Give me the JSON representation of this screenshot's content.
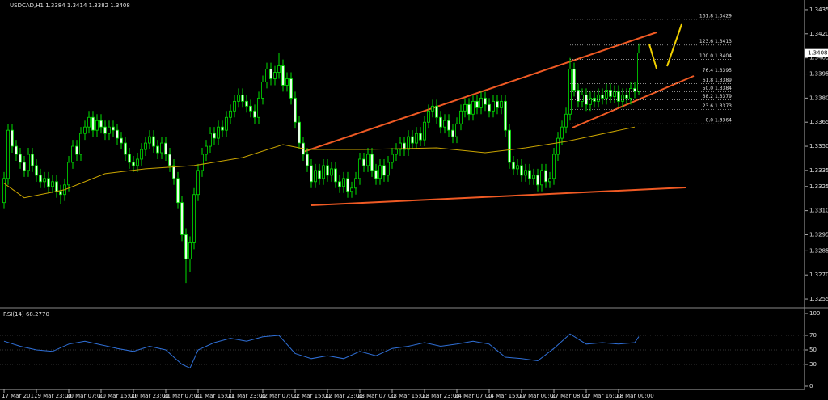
{
  "chart_data": {
    "type": "candlestick",
    "title": "USDCAD,H1  1.3384 1.3414 1.3382 1.3408",
    "up_color": "#000000",
    "down_color": "#e6ffe6",
    "wick_color": "#00e000",
    "grid": false,
    "xlim": [
      -1,
      198
    ],
    "ylim": [
      1.325,
      1.344
    ],
    "yticks": [
      1.3435,
      {
        "value": 1.342,
        "label": "1.3420"
      },
      1.3405,
      1.3395,
      {
        "value": 1.338,
        "label": "1.3380"
      },
      1.3365,
      {
        "value": 1.335,
        "label": "1.3350"
      },
      1.3335,
      1.3325,
      {
        "value": 1.331,
        "label": "1.3310"
      },
      1.3295,
      1.3285,
      {
        "value": 1.327,
        "label": "1.3270"
      },
      1.3255
    ],
    "xticks": [
      {
        "value": 0,
        "label": "17 Mar 2017"
      },
      {
        "value": 8,
        "label": "19 Mar 23:00"
      },
      {
        "value": 16,
        "label": "20 Mar 07:00"
      },
      {
        "value": 24,
        "label": "20 Mar 15:00"
      },
      {
        "value": 32,
        "label": "20 Mar 23:00"
      },
      {
        "value": 40,
        "label": "21 Mar 07:00"
      },
      {
        "value": 48,
        "label": "21 Mar 15:00"
      },
      {
        "value": 56,
        "label": "21 Mar 23:00"
      },
      {
        "value": 64,
        "label": "22 Mar 07:00"
      },
      {
        "value": 72,
        "label": "22 Mar 15:00"
      },
      {
        "value": 80,
        "label": "22 Mar 23:00"
      },
      {
        "value": 88,
        "label": "23 Mar 07:00"
      },
      {
        "value": 96,
        "label": "23 Mar 15:00"
      },
      {
        "value": 104,
        "label": "23 Mar 23:00"
      },
      {
        "value": 112,
        "label": "24 Mar 07:00"
      },
      {
        "value": 120,
        "label": "24 Mar 15:00"
      },
      {
        "value": 128,
        "label": "27 Mar 00:00"
      },
      {
        "value": 136,
        "label": "27 Mar 08:00"
      },
      {
        "value": 144,
        "label": "27 Mar 16:00"
      },
      {
        "value": 152,
        "label": "28 Mar 00:00"
      }
    ],
    "last_price": 1.3408,
    "candles": [
      [
        1.3315,
        1.3334,
        1.3311,
        1.333
      ],
      [
        1.333,
        1.3364,
        1.3326,
        1.336
      ],
      [
        1.336,
        1.3364,
        1.3346,
        1.335
      ],
      [
        1.335,
        1.3354,
        1.3341,
        1.3345
      ],
      [
        1.3345,
        1.3349,
        1.3336,
        1.334
      ],
      [
        1.334,
        1.3344,
        1.3331,
        1.3335
      ],
      [
        1.3335,
        1.3349,
        1.3331,
        1.3345
      ],
      [
        1.3345,
        1.3349,
        1.3334,
        1.3338
      ],
      [
        1.3338,
        1.3342,
        1.3328,
        1.3332
      ],
      [
        1.3332,
        1.3336,
        1.3324,
        1.3328
      ],
      [
        1.3328,
        1.3334,
        1.3324,
        1.333
      ],
      [
        1.333,
        1.3334,
        1.3321,
        1.3325
      ],
      [
        1.3325,
        1.3332,
        1.3321,
        1.3328
      ],
      [
        1.3328,
        1.3332,
        1.3318,
        1.3322
      ],
      [
        1.3322,
        1.3326,
        1.3314,
        1.332
      ],
      [
        1.332,
        1.333,
        1.3316,
        1.3326
      ],
      [
        1.3326,
        1.3344,
        1.3322,
        1.334
      ],
      [
        1.334,
        1.3354,
        1.3336,
        1.335
      ],
      [
        1.335,
        1.3354,
        1.3341,
        1.3345
      ],
      [
        1.3345,
        1.3362,
        1.3341,
        1.3358
      ],
      [
        1.3358,
        1.3366,
        1.3354,
        1.3362
      ],
      [
        1.3362,
        1.3372,
        1.3358,
        1.3368
      ],
      [
        1.3368,
        1.3372,
        1.3356,
        1.336
      ],
      [
        1.336,
        1.337,
        1.3356,
        1.3366
      ],
      [
        1.3366,
        1.337,
        1.3358,
        1.3362
      ],
      [
        1.3362,
        1.3366,
        1.3354,
        1.3358
      ],
      [
        1.3358,
        1.3366,
        1.3354,
        1.3362
      ],
      [
        1.3362,
        1.3366,
        1.3356,
        1.336
      ],
      [
        1.336,
        1.3364,
        1.3351,
        1.3355
      ],
      [
        1.3355,
        1.3359,
        1.3348,
        1.3352
      ],
      [
        1.3352,
        1.3356,
        1.3341,
        1.3345
      ],
      [
        1.3345,
        1.3349,
        1.3336,
        1.334
      ],
      [
        1.334,
        1.3344,
        1.3334,
        1.3338
      ],
      [
        1.3338,
        1.3346,
        1.3334,
        1.3342
      ],
      [
        1.3342,
        1.3352,
        1.3338,
        1.3348
      ],
      [
        1.3348,
        1.3356,
        1.3344,
        1.3352
      ],
      [
        1.3352,
        1.336,
        1.3348,
        1.3356
      ],
      [
        1.3356,
        1.336,
        1.3346,
        1.335
      ],
      [
        1.335,
        1.3354,
        1.3342,
        1.3346
      ],
      [
        1.3346,
        1.3356,
        1.3342,
        1.3352
      ],
      [
        1.3352,
        1.3356,
        1.3341,
        1.3345
      ],
      [
        1.3345,
        1.3349,
        1.3334,
        1.3338
      ],
      [
        1.3338,
        1.3342,
        1.3326,
        1.333
      ],
      [
        1.333,
        1.3334,
        1.3311,
        1.3315
      ],
      [
        1.3315,
        1.3319,
        1.3291,
        1.3295
      ],
      [
        1.3295,
        1.3299,
        1.3265,
        1.328
      ],
      [
        1.328,
        1.3294,
        1.3272,
        1.329
      ],
      [
        1.329,
        1.3324,
        1.3286,
        1.332
      ],
      [
        1.332,
        1.3339,
        1.3316,
        1.3335
      ],
      [
        1.3335,
        1.3349,
        1.3331,
        1.3345
      ],
      [
        1.3345,
        1.3354,
        1.3341,
        1.335
      ],
      [
        1.335,
        1.3362,
        1.3346,
        1.3358
      ],
      [
        1.3358,
        1.3362,
        1.3351,
        1.3355
      ],
      [
        1.3355,
        1.3366,
        1.3351,
        1.3362
      ],
      [
        1.3362,
        1.3366,
        1.3356,
        1.336
      ],
      [
        1.336,
        1.3372,
        1.3356,
        1.3368
      ],
      [
        1.3368,
        1.3376,
        1.3364,
        1.3372
      ],
      [
        1.3372,
        1.3382,
        1.3368,
        1.3378
      ],
      [
        1.3378,
        1.3386,
        1.3374,
        1.3382
      ],
      [
        1.3382,
        1.3386,
        1.3374,
        1.3378
      ],
      [
        1.3378,
        1.3382,
        1.3371,
        1.3375
      ],
      [
        1.3375,
        1.3379,
        1.3368,
        1.3372
      ],
      [
        1.3372,
        1.3376,
        1.3364,
        1.3368
      ],
      [
        1.3368,
        1.3384,
        1.3364,
        1.338
      ],
      [
        1.338,
        1.3394,
        1.3376,
        1.339
      ],
      [
        1.339,
        1.3402,
        1.3386,
        1.3398
      ],
      [
        1.3398,
        1.3402,
        1.3388,
        1.3392
      ],
      [
        1.3392,
        1.34,
        1.3388,
        1.3396
      ],
      [
        1.3396,
        1.3408,
        1.3392,
        1.34
      ],
      [
        1.34,
        1.3404,
        1.3384,
        1.3388
      ],
      [
        1.3388,
        1.3396,
        1.3384,
        1.3392
      ],
      [
        1.3392,
        1.3396,
        1.3376,
        1.338
      ],
      [
        1.338,
        1.3384,
        1.3361,
        1.3365
      ],
      [
        1.3365,
        1.3369,
        1.3348,
        1.3352
      ],
      [
        1.3352,
        1.3356,
        1.3341,
        1.3345
      ],
      [
        1.3345,
        1.3349,
        1.3334,
        1.3338
      ],
      [
        1.3338,
        1.3342,
        1.3324,
        1.3328
      ],
      [
        1.3328,
        1.3339,
        1.3324,
        1.3335
      ],
      [
        1.3335,
        1.3339,
        1.3326,
        1.333
      ],
      [
        1.333,
        1.3342,
        1.3326,
        1.3338
      ],
      [
        1.3338,
        1.3342,
        1.3328,
        1.3332
      ],
      [
        1.3332,
        1.334,
        1.3328,
        1.3336
      ],
      [
        1.3336,
        1.334,
        1.3324,
        1.3328
      ],
      [
        1.3328,
        1.3332,
        1.3321,
        1.3325
      ],
      [
        1.3325,
        1.3334,
        1.3321,
        1.333
      ],
      [
        1.333,
        1.3334,
        1.3318,
        1.3322
      ],
      [
        1.3322,
        1.3328,
        1.3318,
        1.3324
      ],
      [
        1.3324,
        1.3334,
        1.332,
        1.333
      ],
      [
        1.333,
        1.3346,
        1.3326,
        1.3342
      ],
      [
        1.3342,
        1.3346,
        1.3334,
        1.3338
      ],
      [
        1.3338,
        1.3349,
        1.3334,
        1.3345
      ],
      [
        1.3345,
        1.3349,
        1.3331,
        1.3335
      ],
      [
        1.3335,
        1.3339,
        1.3326,
        1.333
      ],
      [
        1.333,
        1.3342,
        1.3326,
        1.3338
      ],
      [
        1.3338,
        1.3342,
        1.3328,
        1.3332
      ],
      [
        1.3332,
        1.3344,
        1.3328,
        1.334
      ],
      [
        1.334,
        1.3349,
        1.3336,
        1.3345
      ],
      [
        1.3345,
        1.3352,
        1.3341,
        1.3348
      ],
      [
        1.3348,
        1.3356,
        1.3344,
        1.3352
      ],
      [
        1.3352,
        1.3356,
        1.3344,
        1.3348
      ],
      [
        1.3348,
        1.336,
        1.3344,
        1.3356
      ],
      [
        1.3356,
        1.336,
        1.3348,
        1.3352
      ],
      [
        1.3352,
        1.3362,
        1.3348,
        1.3358
      ],
      [
        1.3358,
        1.3362,
        1.335,
        1.3354
      ],
      [
        1.3354,
        1.3369,
        1.335,
        1.3365
      ],
      [
        1.3365,
        1.3376,
        1.3361,
        1.3372
      ],
      [
        1.3372,
        1.3379,
        1.3368,
        1.3375
      ],
      [
        1.3375,
        1.3379,
        1.3364,
        1.3368
      ],
      [
        1.3368,
        1.3372,
        1.3358,
        1.3362
      ],
      [
        1.3362,
        1.337,
        1.3358,
        1.3366
      ],
      [
        1.3366,
        1.337,
        1.3356,
        1.336
      ],
      [
        1.336,
        1.3364,
        1.3352,
        1.3356
      ],
      [
        1.3356,
        1.3368,
        1.3352,
        1.3364
      ],
      [
        1.3364,
        1.3376,
        1.336,
        1.3372
      ],
      [
        1.3372,
        1.338,
        1.3368,
        1.3376
      ],
      [
        1.3376,
        1.338,
        1.3366,
        1.337
      ],
      [
        1.337,
        1.3382,
        1.3366,
        1.3378
      ],
      [
        1.3378,
        1.3382,
        1.337,
        1.3374
      ],
      [
        1.3374,
        1.3384,
        1.337,
        1.338
      ],
      [
        1.338,
        1.3384,
        1.3372,
        1.3376
      ],
      [
        1.3376,
        1.338,
        1.3368,
        1.3372
      ],
      [
        1.3372,
        1.3382,
        1.3368,
        1.3378
      ],
      [
        1.3378,
        1.3382,
        1.337,
        1.3374
      ],
      [
        1.3374,
        1.3382,
        1.337,
        1.3378
      ],
      [
        1.3378,
        1.3382,
        1.3356,
        1.336
      ],
      [
        1.336,
        1.3364,
        1.3336,
        1.334
      ],
      [
        1.334,
        1.3344,
        1.3332,
        1.3336
      ],
      [
        1.3336,
        1.3342,
        1.3332,
        1.3338
      ],
      [
        1.3338,
        1.3342,
        1.3328,
        1.3332
      ],
      [
        1.3332,
        1.3339,
        1.3328,
        1.3335
      ],
      [
        1.3335,
        1.3339,
        1.3326,
        1.333
      ],
      [
        1.333,
        1.3336,
        1.3326,
        1.3332
      ],
      [
        1.3332,
        1.3336,
        1.3322,
        1.3326
      ],
      [
        1.3326,
        1.3339,
        1.3322,
        1.3335
      ],
      [
        1.3335,
        1.3339,
        1.3324,
        1.3328
      ],
      [
        1.3328,
        1.3334,
        1.3324,
        1.333
      ],
      [
        1.333,
        1.3349,
        1.3326,
        1.3345
      ],
      [
        1.3345,
        1.3359,
        1.3341,
        1.3355
      ],
      [
        1.3355,
        1.3366,
        1.3351,
        1.3362
      ],
      [
        1.3362,
        1.3374,
        1.3358,
        1.337
      ],
      [
        1.337,
        1.3405,
        1.3366,
        1.3398
      ],
      [
        1.3398,
        1.3402,
        1.3381,
        1.3385
      ],
      [
        1.3385,
        1.3389,
        1.3374,
        1.3378
      ],
      [
        1.3378,
        1.3386,
        1.3374,
        1.3382
      ],
      [
        1.3382,
        1.3386,
        1.3372,
        1.3376
      ],
      [
        1.3376,
        1.3384,
        1.3372,
        1.338
      ],
      [
        1.338,
        1.3384,
        1.3374,
        1.3378
      ],
      [
        1.3378,
        1.3386,
        1.3374,
        1.3382
      ],
      [
        1.3382,
        1.3386,
        1.3376,
        1.338
      ],
      [
        1.338,
        1.3389,
        1.3376,
        1.3385
      ],
      [
        1.3385,
        1.3389,
        1.3377,
        1.3381
      ],
      [
        1.3381,
        1.3388,
        1.3377,
        1.3384
      ],
      [
        1.3384,
        1.3388,
        1.3374,
        1.3378
      ],
      [
        1.3378,
        1.3386,
        1.3374,
        1.3382
      ],
      [
        1.3382,
        1.3386,
        1.3376,
        1.338
      ],
      [
        1.338,
        1.339,
        1.3376,
        1.3386
      ],
      [
        1.3386,
        1.339,
        1.338,
        1.3384
      ],
      [
        1.3384,
        1.3414,
        1.3382,
        1.3408
      ]
    ],
    "series": [
      {
        "color": "#c9a400",
        "x": [
          0,
          5,
          15,
          25,
          35,
          47,
          59,
          69,
          75,
          89,
          107,
          119,
          129,
          139,
          156
        ],
        "values": [
          1.3327,
          1.3318,
          1.3323,
          1.3333,
          1.3336,
          1.3338,
          1.3343,
          1.3351,
          1.3348,
          1.3348,
          1.3349,
          1.3346,
          1.3349,
          1.3353,
          1.3362
        ]
      }
    ],
    "fibo_levels": [
      {
        "label": "161.8 1.3429",
        "value": 1.3429
      },
      {
        "label": "123.6 1.3413",
        "value": 1.3413
      },
      {
        "label": "100.0 1.3404",
        "value": 1.3404
      },
      {
        "label": "76.4 1.3395",
        "value": 1.3395
      },
      {
        "label": "61.8 1.3389",
        "value": 1.3389
      },
      {
        "label": "50.0 1.3384",
        "value": 1.3384
      },
      {
        "label": "38.2 1.3379",
        "value": 1.3379
      },
      {
        "label": "23.6 1.3373",
        "value": 1.3373
      },
      {
        "label": "0.0 1.3364",
        "value": 1.3364
      }
    ],
    "indicator": {
      "title": "RSI(14) 68.2770",
      "color": "#2f6fd6",
      "ylim": [
        0,
        100
      ],
      "yticks": [
        100,
        70,
        50,
        30,
        0
      ],
      "x": [
        0,
        4,
        8,
        12,
        16,
        20,
        24,
        28,
        32,
        36,
        40,
        44,
        46,
        48,
        52,
        56,
        60,
        64,
        68,
        72,
        76,
        80,
        84,
        88,
        92,
        96,
        100,
        104,
        108,
        112,
        116,
        120,
        124,
        128,
        132,
        136,
        140,
        144,
        148,
        152,
        156,
        157
      ],
      "values": [
        62,
        55,
        50,
        48,
        58,
        62,
        57,
        52,
        48,
        55,
        50,
        30,
        25,
        50,
        60,
        66,
        62,
        68,
        70,
        45,
        38,
        42,
        38,
        48,
        42,
        52,
        55,
        60,
        55,
        58,
        62,
        58,
        40,
        38,
        35,
        52,
        72,
        58,
        60,
        58,
        60,
        68.277
      ]
    }
  }
}
